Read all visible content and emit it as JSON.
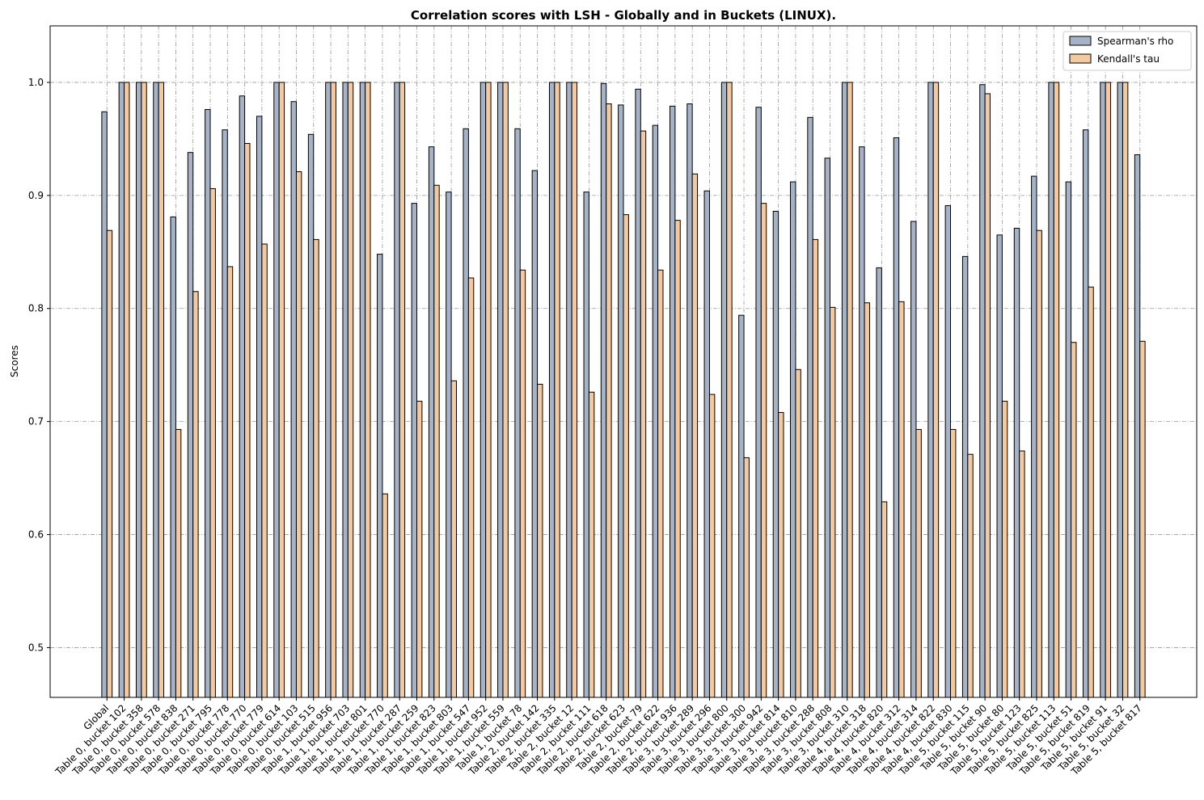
{
  "chart_data": {
    "type": "bar",
    "title": "Correlation scores with LSH - Globally and in Buckets (LINUX).",
    "ylabel": "Scores",
    "categories": [
      "Global",
      "Table 0, bucket 102",
      "Table 0, bucket 358",
      "Table 0, bucket 578",
      "Table 0, bucket 838",
      "Table 0, bucket 271",
      "Table 0, bucket 795",
      "Table 0, bucket 778",
      "Table 0, bucket 770",
      "Table 0, bucket 779",
      "Table 0, bucket 614",
      "Table 0, bucket 103",
      "Table 0, bucket 515",
      "Table 1, bucket 956",
      "Table 1, bucket 703",
      "Table 1, bucket 801",
      "Table 1, bucket 770",
      "Table 1, bucket 287",
      "Table 1, bucket 259",
      "Table 1, bucket 823",
      "Table 1, bucket 803",
      "Table 1, bucket 547",
      "Table 1, bucket 952",
      "Table 1, bucket 559",
      "Table 1, bucket 78",
      "Table 2, bucket 142",
      "Table 2, bucket 335",
      "Table 2, bucket 12",
      "Table 2, bucket 111",
      "Table 2, bucket 618",
      "Table 2, bucket 623",
      "Table 2, bucket 79",
      "Table 2, bucket 622",
      "Table 2, bucket 936",
      "Table 3, bucket 289",
      "Table 3, bucket 296",
      "Table 3, bucket 800",
      "Table 3, bucket 300",
      "Table 3, bucket 942",
      "Table 3, bucket 814",
      "Table 3, bucket 810",
      "Table 3, bucket 288",
      "Table 3, bucket 808",
      "Table 3, bucket 310",
      "Table 4, bucket 318",
      "Table 4, bucket 820",
      "Table 4, bucket 312",
      "Table 4, bucket 314",
      "Table 4, bucket 822",
      "Table 4, bucket 830",
      "Table 5, bucket 115",
      "Table 5, bucket 90",
      "Table 5, bucket 80",
      "Table 5, bucket 123",
      "Table 5, bucket 825",
      "Table 5, bucket 113",
      "Table 5, bucket 51",
      "Table 5, bucket 819",
      "Table 5, bucket 91",
      "Table 5, bucket 32",
      "Table 5, bucket 817"
    ],
    "series": [
      {
        "name": "Spearman's rho",
        "color": "#a6b3c7",
        "values": [
          0.974,
          1,
          1,
          1,
          0.881,
          0.938,
          0.976,
          0.958,
          0.988,
          0.97,
          1,
          0.983,
          0.954,
          1,
          1,
          1,
          0.848,
          1,
          0.893,
          0.943,
          0.903,
          0.959,
          1,
          1,
          0.959,
          0.922,
          1,
          1,
          0.903,
          0.999,
          0.98,
          0.994,
          0.962,
          0.979,
          0.981,
          0.904,
          1,
          0.794,
          0.978,
          0.886,
          0.912,
          0.969,
          0.933,
          1,
          0.943,
          0.836,
          0.951,
          0.877,
          1,
          0.891,
          0.846,
          0.998,
          0.865,
          0.871,
          0.917,
          1,
          0.912,
          0.958,
          1,
          1,
          0.936
        ]
      },
      {
        "name": "Kendall's tau",
        "color": "#f2c9a0",
        "values": [
          0.869,
          1,
          1,
          1,
          0.693,
          0.815,
          0.906,
          0.837,
          0.946,
          0.857,
          1,
          0.921,
          0.861,
          1,
          1,
          1,
          0.636,
          1,
          0.718,
          0.909,
          0.736,
          0.827,
          1,
          1,
          0.834,
          0.733,
          1,
          1,
          0.726,
          0.981,
          0.883,
          0.957,
          0.834,
          0.878,
          0.919,
          0.724,
          1,
          0.668,
          0.893,
          0.708,
          0.746,
          0.861,
          0.801,
          1,
          0.805,
          0.629,
          0.806,
          0.693,
          1,
          0.693,
          0.671,
          0.99,
          0.718,
          0.674,
          0.869,
          1,
          0.77,
          0.819,
          1,
          1,
          0.771
        ]
      }
    ],
    "ylim": [
      0.456,
      1.05
    ],
    "yticks": [
      0.5,
      0.6,
      0.7,
      0.8,
      0.9,
      {
        "value": 1,
        "label": "1.0"
      }
    ],
    "grid": true,
    "legend": "upper right"
  }
}
